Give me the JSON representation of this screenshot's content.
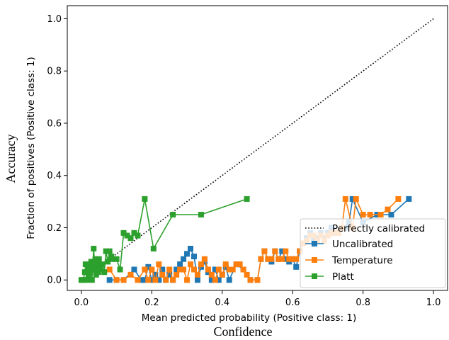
{
  "outer_labels": {
    "y": "Accuracy",
    "x": "Confidence"
  },
  "chart_data": {
    "type": "line",
    "xlabel": "Mean predicted probability (Positive class: 1)",
    "ylabel": "Fraction of positives (Positive class: 1)",
    "xlim": [
      -0.04,
      1.04
    ],
    "ylim": [
      -0.04,
      1.05
    ],
    "xticks": [
      "0.0",
      "0.2",
      "0.4",
      "0.6",
      "0.8",
      "1.0"
    ],
    "yticks": [
      "0.0",
      "0.2",
      "0.4",
      "0.6",
      "0.8",
      "1.0"
    ],
    "grid": false,
    "legend_position": "lower right",
    "reference": {
      "name": "Perfectly calibrated",
      "x": [
        0,
        1
      ],
      "y": [
        0,
        1
      ],
      "color": "#000000",
      "style": "dotted"
    },
    "series": [
      {
        "name": "Uncalibrated",
        "color": "#1f77b4",
        "x": [
          0.08,
          0.1,
          0.12,
          0.15,
          0.17,
          0.18,
          0.19,
          0.2,
          0.21,
          0.22,
          0.23,
          0.24,
          0.25,
          0.26,
          0.27,
          0.28,
          0.29,
          0.3,
          0.31,
          0.32,
          0.33,
          0.34,
          0.35,
          0.36,
          0.37,
          0.38,
          0.39,
          0.4,
          0.41,
          0.42,
          0.44,
          0.46,
          0.48,
          0.5,
          0.51,
          0.52,
          0.53,
          0.54,
          0.55,
          0.56,
          0.57,
          0.58,
          0.59,
          0.6,
          0.61,
          0.62,
          0.63,
          0.64,
          0.65,
          0.66,
          0.67,
          0.68,
          0.69,
          0.7,
          0.71,
          0.72,
          0.73,
          0.74,
          0.75,
          0.76,
          0.77,
          0.8,
          0.84,
          0.88,
          0.93
        ],
        "y": [
          0.0,
          0.0,
          0.0,
          0.04,
          0.0,
          0.0,
          0.05,
          0.0,
          0.02,
          0.0,
          0.04,
          0.0,
          0.02,
          0.0,
          0.04,
          0.06,
          0.08,
          0.1,
          0.12,
          0.09,
          0.0,
          0.05,
          0.07,
          0.03,
          0.0,
          0.04,
          0.0,
          0.02,
          0.05,
          0.0,
          0.06,
          0.04,
          0.0,
          0.0,
          0.08,
          0.11,
          0.08,
          0.07,
          0.11,
          0.08,
          0.11,
          0.08,
          0.07,
          0.08,
          0.05,
          0.11,
          0.14,
          0.16,
          0.18,
          0.15,
          0.16,
          0.18,
          0.16,
          0.18,
          0.2,
          0.18,
          0.18,
          0.2,
          0.2,
          0.22,
          0.31,
          0.22,
          0.25,
          0.25,
          0.31
        ]
      },
      {
        "name": "Temperature",
        "color": "#ff7f0e",
        "x": [
          0.08,
          0.1,
          0.12,
          0.14,
          0.16,
          0.18,
          0.19,
          0.2,
          0.21,
          0.22,
          0.23,
          0.24,
          0.25,
          0.26,
          0.27,
          0.28,
          0.29,
          0.3,
          0.31,
          0.32,
          0.33,
          0.34,
          0.35,
          0.36,
          0.37,
          0.38,
          0.39,
          0.4,
          0.41,
          0.42,
          0.43,
          0.44,
          0.45,
          0.46,
          0.47,
          0.48,
          0.5,
          0.51,
          0.52,
          0.53,
          0.54,
          0.55,
          0.56,
          0.57,
          0.58,
          0.59,
          0.6,
          0.61,
          0.62,
          0.63,
          0.64,
          0.65,
          0.66,
          0.67,
          0.68,
          0.69,
          0.7,
          0.71,
          0.72,
          0.73,
          0.74,
          0.75,
          0.77,
          0.78,
          0.8,
          0.82,
          0.85,
          0.87,
          0.9
        ],
        "y": [
          0.04,
          0.0,
          0.0,
          0.02,
          0.0,
          0.04,
          0.0,
          0.04,
          0.0,
          0.06,
          0.02,
          0.0,
          0.04,
          0.0,
          0.02,
          0.04,
          0.04,
          0.0,
          0.06,
          0.04,
          0.02,
          0.06,
          0.08,
          0.04,
          0.02,
          0.0,
          0.04,
          0.02,
          0.06,
          0.04,
          0.04,
          0.06,
          0.06,
          0.04,
          0.02,
          0.0,
          0.0,
          0.08,
          0.11,
          0.08,
          0.08,
          0.11,
          0.08,
          0.08,
          0.11,
          0.08,
          0.08,
          0.08,
          0.11,
          0.14,
          0.15,
          0.17,
          0.17,
          0.15,
          0.17,
          0.15,
          0.17,
          0.18,
          0.18,
          0.18,
          0.2,
          0.31,
          0.2,
          0.31,
          0.25,
          0.25,
          0.25,
          0.27,
          0.31
        ]
      },
      {
        "name": "Platt",
        "color": "#2ca02c",
        "x": [
          0.0,
          0.005,
          0.01,
          0.012,
          0.015,
          0.018,
          0.02,
          0.022,
          0.025,
          0.028,
          0.03,
          0.032,
          0.035,
          0.038,
          0.04,
          0.042,
          0.045,
          0.048,
          0.05,
          0.055,
          0.06,
          0.065,
          0.07,
          0.075,
          0.08,
          0.085,
          0.09,
          0.1,
          0.11,
          0.12,
          0.13,
          0.14,
          0.15,
          0.16,
          0.18,
          0.205,
          0.26,
          0.34,
          0.47
        ],
        "y": [
          0.0,
          0.0,
          0.03,
          0.06,
          0.0,
          0.04,
          0.02,
          0.06,
          0.03,
          0.07,
          0.0,
          0.05,
          0.12,
          0.04,
          0.08,
          0.02,
          0.06,
          0.03,
          0.08,
          0.04,
          0.06,
          0.03,
          0.11,
          0.07,
          0.11,
          0.09,
          0.08,
          0.08,
          0.04,
          0.18,
          0.17,
          0.16,
          0.18,
          0.17,
          0.31,
          0.12,
          0.25,
          0.25,
          0.31
        ]
      }
    ]
  }
}
